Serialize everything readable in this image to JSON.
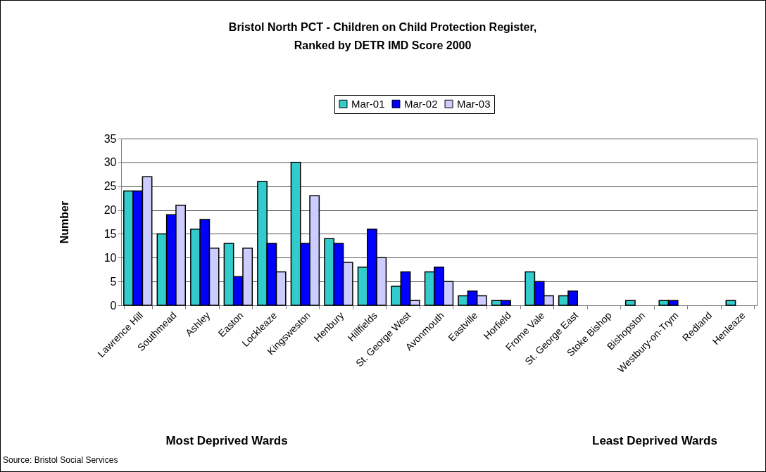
{
  "chart_data": {
    "type": "bar",
    "title": "Bristol North PCT - Children on Child Protection Register,\nRanked by DETR IMD Score 2000",
    "ylabel": "Number",
    "categories": [
      "Lawrence Hill",
      "Southmead",
      "Ashley",
      "Easton",
      "Lockleaze",
      "Kingsweston",
      "Henbury",
      "Hillfields",
      "St. George West",
      "Avonmouth",
      "Eastville",
      "Horfield",
      "Frome Vale",
      "St. George East",
      "Stoke Bishop",
      "Bishopston",
      "Westbury-on-Trym",
      "Redland",
      "Henleaze"
    ],
    "series": [
      {
        "name": "Mar-01",
        "color": "#33cccc",
        "values": [
          24,
          15,
          16,
          13,
          26,
          30,
          14,
          8,
          4,
          7,
          2,
          1,
          7,
          2,
          0,
          1,
          1,
          0,
          1
        ]
      },
      {
        "name": "Mar-02",
        "color": "#0000ff",
        "values": [
          24,
          19,
          18,
          6,
          13,
          13,
          13,
          16,
          7,
          8,
          3,
          1,
          5,
          3,
          0,
          0,
          1,
          0,
          0
        ]
      },
      {
        "name": "Mar-03",
        "color": "#ccccff",
        "values": [
          27,
          21,
          12,
          12,
          7,
          23,
          9,
          10,
          1,
          5,
          2,
          0,
          2,
          0,
          0,
          0,
          0,
          0,
          0
        ]
      }
    ],
    "ylim": [
      0,
      35
    ],
    "yticks": [
      0,
      5,
      10,
      15,
      20,
      25,
      30,
      35
    ],
    "grid": "y",
    "legend": "top",
    "annotations": [
      "Most Deprived Wards",
      "Least Deprived Wards",
      "Source: Bristol Social Services"
    ]
  }
}
